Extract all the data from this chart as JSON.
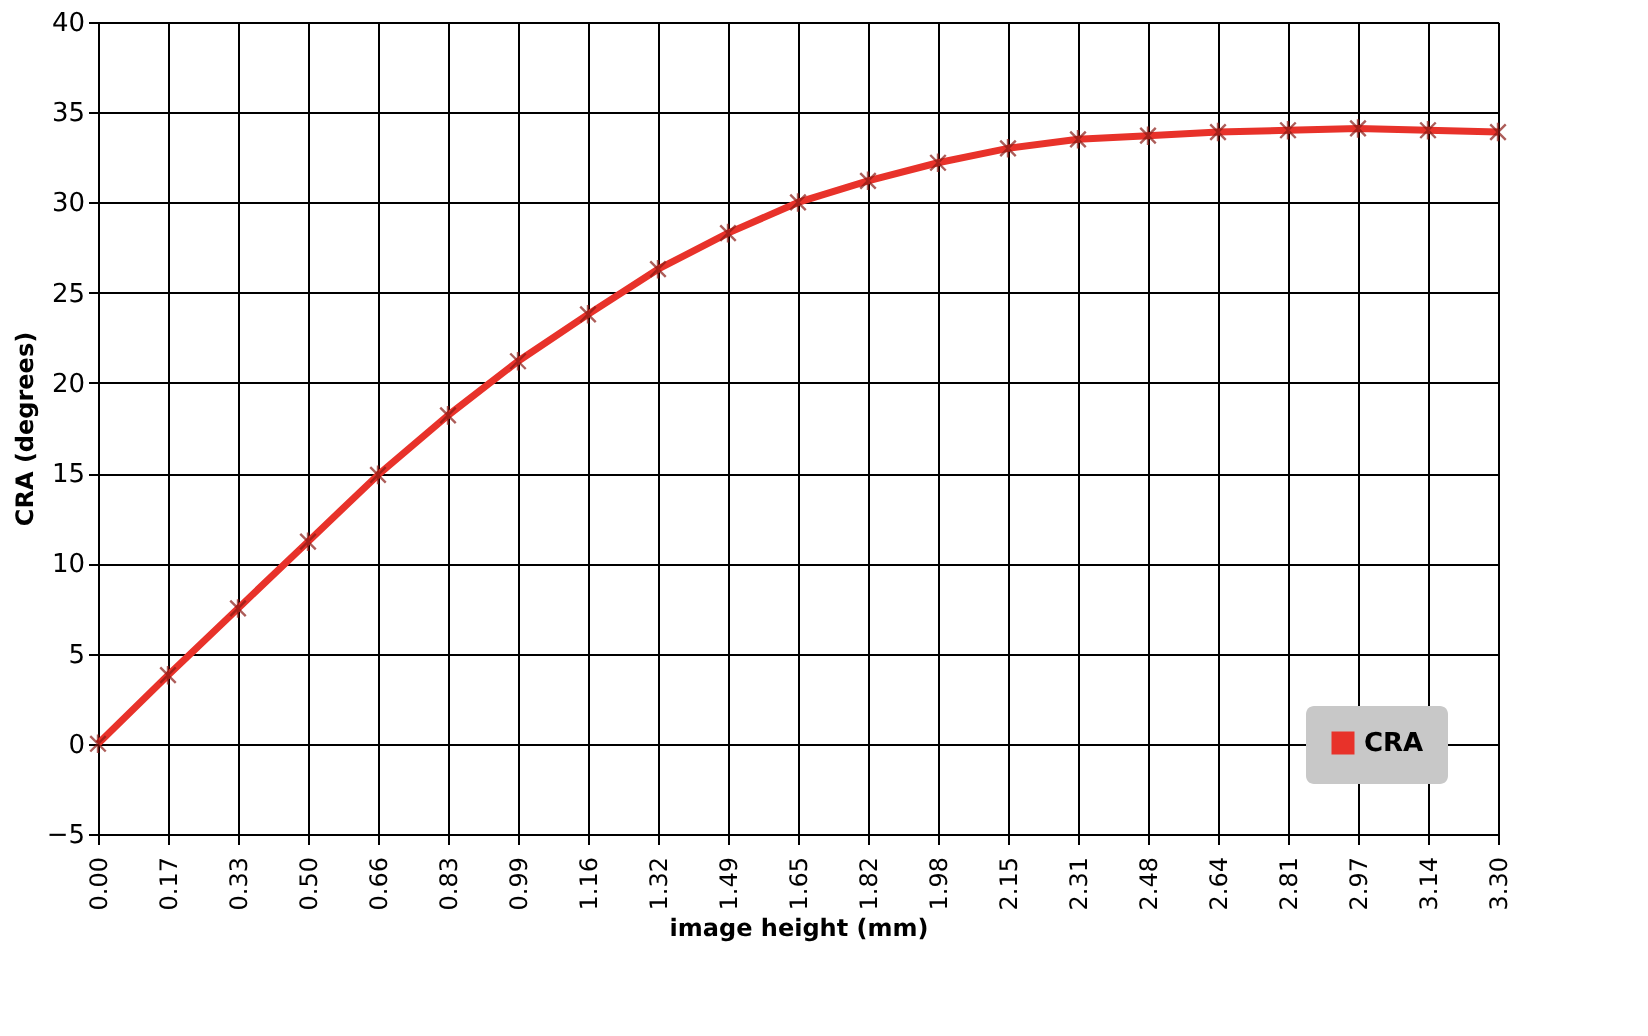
{
  "chart_data": {
    "type": "line",
    "xlabel": "image height (mm)",
    "ylabel": "CRA (degrees)",
    "categories": [
      "0.00",
      "0.17",
      "0.33",
      "0.50",
      "0.66",
      "0.83",
      "0.99",
      "1.16",
      "1.32",
      "1.49",
      "1.65",
      "1.82",
      "1.98",
      "2.15",
      "2.31",
      "2.48",
      "2.64",
      "2.81",
      "2.97",
      "3.14",
      "3.30"
    ],
    "series": [
      {
        "name": "CRA",
        "color": "#e8322a",
        "values": [
          0,
          3.8,
          7.5,
          11.2,
          14.9,
          18.2,
          21.2,
          23.8,
          26.3,
          28.3,
          30.0,
          31.2,
          32.2,
          33.0,
          33.5,
          33.7,
          33.9,
          34.0,
          34.1,
          34.0,
          33.9
        ]
      }
    ],
    "ylim": [
      -5,
      40
    ],
    "yticks": [
      -5,
      0,
      5,
      10,
      15,
      20,
      25,
      30,
      35,
      40
    ],
    "grid": true,
    "legend": "bottom right",
    "marker": "cross",
    "line_style": "solid"
  }
}
